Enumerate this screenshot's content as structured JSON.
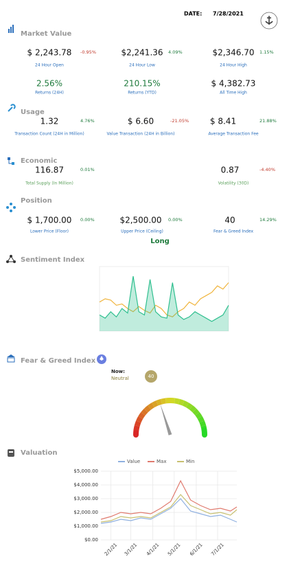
{
  "header": {
    "date_label": "DATE:",
    "date": "7/28/2021"
  },
  "sections": [
    {
      "title": "Market Value",
      "label_color": "#2a6ebb",
      "items": [
        {
          "value": "$ 2,243.78",
          "change": "-0.95%",
          "label": "24 Hour Open"
        },
        {
          "value": "$2,241.36",
          "change": "4.09%",
          "label": "24 Hour Low"
        },
        {
          "value": "$2,346.70",
          "change": "1.15%",
          "label": "24 Hour High"
        },
        {
          "value": "2.56%",
          "color": "#1e7a3c",
          "label": "Returns (24H)"
        },
        {
          "value": "210.15%",
          "color": "#1e7a3c",
          "label": "Returns (YTD)"
        },
        {
          "value": "$ 4,382.73",
          "label": "All Time High"
        }
      ]
    },
    {
      "title": "Usage",
      "label_color": "#2a6ebb",
      "items": [
        {
          "value": "1.32",
          "change": "4.76%",
          "label": "Transaction Count (24H in Million)"
        },
        {
          "value": "$ 6.60",
          "change": "-21.05%",
          "label": "Value Transaction (24H in Billion)"
        },
        {
          "value": "$ 8.41",
          "change": "21.88%",
          "label": "Average Transaction Fee"
        }
      ]
    },
    {
      "title": "Economic",
      "label_color": "#5aa05a",
      "items": [
        {
          "value": "116.87",
          "change": "0.01%",
          "label": "Total Supply (In Million)"
        },
        {
          "value": "0.87",
          "change": "-4.40%",
          "label": "Volatility (30D)"
        }
      ]
    },
    {
      "title": "Position",
      "label_color": "#2a6ebb",
      "items": [
        {
          "value": "$ 1,700.00",
          "change": "0.00%",
          "label": "Lower Price (Floor)"
        },
        {
          "value": "$2,500.00",
          "change": "0.00%",
          "label": "Upper Price (Ceiling)"
        },
        {
          "value": "40",
          "change": "14.29%",
          "label": "Fear & Greed Index"
        }
      ]
    }
  ],
  "position_signal": "Long",
  "chart_data": [
    {
      "type": "line",
      "title": "Sentiment Index",
      "ylim": [
        0,
        100
      ],
      "series": [
        {
          "color": "#f0b43c",
          "values": [
            45,
            50,
            48,
            40,
            42,
            35,
            30,
            38,
            32,
            28,
            40,
            35,
            25,
            22,
            30,
            35,
            45,
            40,
            50,
            55,
            60,
            70,
            65,
            75
          ]
        },
        {
          "color": "#2fbf8f",
          "fill": true,
          "values": [
            25,
            20,
            30,
            22,
            35,
            28,
            85,
            30,
            25,
            80,
            30,
            22,
            20,
            75,
            25,
            18,
            22,
            30,
            25,
            20,
            15,
            20,
            25,
            40
          ]
        }
      ]
    },
    {
      "type": "gauge",
      "title": "Fear & Greed Index",
      "label": "Now:",
      "status": "Neutral",
      "value": 40,
      "range": [
        0,
        100
      ]
    },
    {
      "type": "line",
      "title": "Valuation",
      "grid": true,
      "x": [
        "1/18/21",
        "2/1/21",
        "2/15/21",
        "3/1/21",
        "3/15/21",
        "3/29/21",
        "4/12/21",
        "4/26/21",
        "5/10/21",
        "5/24/21",
        "6/7/21",
        "6/21/21",
        "7/5/21",
        "7/19/21",
        "7/28/21"
      ],
      "xlim": [
        "1/18/21",
        "7/28/21"
      ],
      "xticks": [
        "2/1/21",
        "3/1/21",
        "4/1/21",
        "5/1/21",
        "6/1/21",
        "7/1/21"
      ],
      "ylim": [
        0,
        5000
      ],
      "yticks": [
        {
          "value": 0,
          "label": "$0.00"
        },
        {
          "value": 1000,
          "label": "$1,000.00"
        },
        {
          "value": 2000,
          "label": "$2,000.00"
        },
        {
          "value": 3000,
          "label": "$3,000.00"
        },
        {
          "value": 4000,
          "label": "$4,000.00"
        },
        {
          "value": 5000,
          "label": "$5,000.00"
        }
      ],
      "series": [
        {
          "name": "Value",
          "color": "#8fb0e0",
          "values": [
            1200,
            1300,
            1500,
            1400,
            1600,
            1500,
            1900,
            2300,
            3000,
            2100,
            1900,
            1700,
            1800,
            1500,
            1300
          ]
        },
        {
          "name": "Max",
          "color": "#e07a6e",
          "values": [
            1500,
            1700,
            2000,
            1900,
            2000,
            1900,
            2300,
            2800,
            4300,
            2900,
            2500,
            2200,
            2300,
            2100,
            2400
          ]
        },
        {
          "name": "Min",
          "color": "#c8c070",
          "values": [
            1300,
            1400,
            1700,
            1600,
            1700,
            1600,
            2000,
            2400,
            3300,
            2500,
            2200,
            1900,
            2000,
            1800,
            2200
          ]
        }
      ]
    }
  ]
}
